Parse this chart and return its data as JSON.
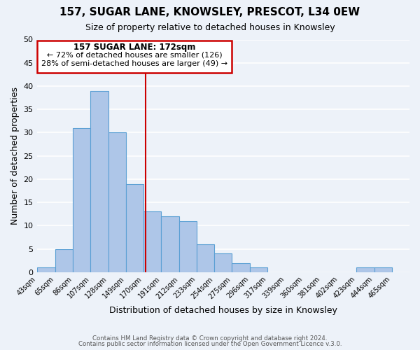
{
  "title": "157, SUGAR LANE, KNOWSLEY, PRESCOT, L34 0EW",
  "subtitle": "Size of property relative to detached houses in Knowsley",
  "xlabel": "Distribution of detached houses by size in Knowsley",
  "ylabel": "Number of detached properties",
  "bar_edges": [
    43,
    65,
    86,
    107,
    128,
    149,
    170,
    191,
    212,
    233,
    254,
    275,
    296,
    317,
    339,
    360,
    381,
    402,
    423,
    444,
    465,
    486
  ],
  "bar_heights": [
    1,
    5,
    31,
    39,
    30,
    19,
    13,
    12,
    11,
    6,
    4,
    2,
    1,
    0,
    0,
    0,
    0,
    0,
    1,
    1,
    0
  ],
  "bar_color": "#aec6e8",
  "bar_edge_color": "#5a9fd4",
  "ylim": [
    0,
    50
  ],
  "yticks": [
    0,
    5,
    10,
    15,
    20,
    25,
    30,
    35,
    40,
    45,
    50
  ],
  "annotation_title": "157 SUGAR LANE: 172sqm",
  "annotation_line1": "← 72% of detached houses are smaller (126)",
  "annotation_line2": "28% of semi-detached houses are larger (49) →",
  "annotation_box_color": "#ffffff",
  "annotation_box_edge_color": "#cc0000",
  "vline_x": 172,
  "xtick_labels": [
    "43sqm",
    "65sqm",
    "86sqm",
    "107sqm",
    "128sqm",
    "149sqm",
    "170sqm",
    "191sqm",
    "212sqm",
    "233sqm",
    "254sqm",
    "275sqm",
    "296sqm",
    "317sqm",
    "339sqm",
    "360sqm",
    "381sqm",
    "402sqm",
    "423sqm",
    "444sqm",
    "465sqm"
  ],
  "footer1": "Contains HM Land Registry data © Crown copyright and database right 2024.",
  "footer2": "Contains public sector information licensed under the Open Government Licence v.3.0.",
  "background_color": "#edf2f9",
  "grid_color": "#ffffff"
}
